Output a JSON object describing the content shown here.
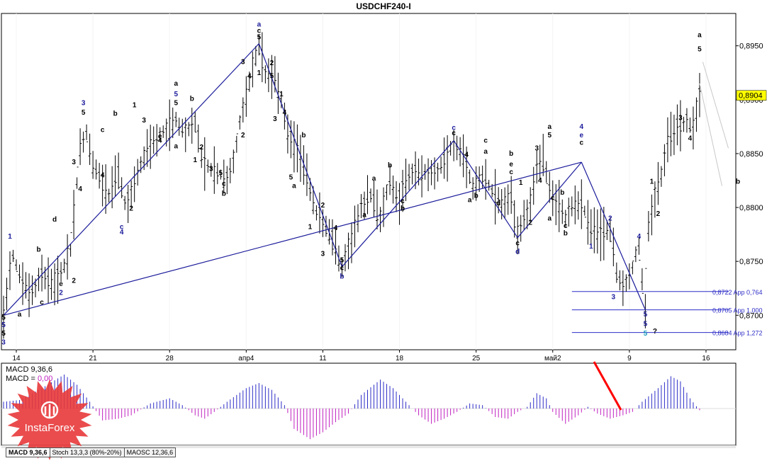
{
  "title": "USDCHF240-I",
  "brand": "InstaForex",
  "colors": {
    "price_line": "#000000",
    "wave_line": "#1c1c9c",
    "level_line": "#2d2dc8",
    "macd_pos": "#2d2dc8",
    "macd_neg": "#c020c0",
    "warning": "#ff0000",
    "price_label_bg": "#ffff00",
    "brand_red": "#e8393a"
  },
  "price_axis": {
    "ticks": [
      "0,8950",
      "0,8900",
      "0,8850",
      "0,8800",
      "0,8750",
      "0,8700"
    ],
    "current_price": "0,8904"
  },
  "time_axis": {
    "ticks": [
      "14",
      "21",
      "28",
      "апр4",
      "11",
      "18",
      "25",
      "май2",
      "9",
      "16"
    ]
  },
  "levels": [
    {
      "label": "0,8722 App 0,764",
      "value": 0.8722
    },
    {
      "label": "0,8705 App 1,000",
      "value": 0.8705
    },
    {
      "label": "0,8684 App 1,272",
      "value": 0.8684
    }
  ],
  "wave_labels": [
    {
      "text": "5",
      "color": "#000000",
      "t": 0,
      "p": 0.8696
    },
    {
      "text": "5",
      "color": "#1c1c9c",
      "t": 0,
      "p": 0.8689
    },
    {
      "text": "5",
      "color": "#000000",
      "t": 0,
      "p": 0.8681
    },
    {
      "text": "3",
      "color": "#1c1c9c",
      "t": 0,
      "p": 0.8673
    },
    {
      "text": "a",
      "color": "#000000",
      "t": 5,
      "p": 0.8699
    },
    {
      "text": "1",
      "color": "#1c1c9c",
      "t": 2,
      "p": 0.8771
    },
    {
      "text": "b",
      "color": "#000000",
      "t": 11,
      "p": 0.8759
    },
    {
      "text": "d",
      "color": "#000000",
      "t": 16,
      "p": 0.8787
    },
    {
      "text": "c",
      "color": "#000000",
      "t": 12,
      "p": 0.871
    },
    {
      "text": "e",
      "color": "#000000",
      "t": 18,
      "p": 0.8727
    },
    {
      "text": "2",
      "color": "#1c1c9c",
      "t": 18,
      "p": 0.8719
    },
    {
      "text": "2",
      "color": "#000000",
      "t": 22,
      "p": 0.873
    },
    {
      "text": "3",
      "color": "#1c1c9c",
      "t": 25,
      "p": 0.8895
    },
    {
      "text": "5",
      "color": "#000000",
      "t": 25,
      "p": 0.8886
    },
    {
      "text": "3",
      "color": "#000000",
      "t": 22,
      "p": 0.884
    },
    {
      "text": "4",
      "color": "#000000",
      "t": 24,
      "p": 0.8815
    },
    {
      "text": "b",
      "color": "#000000",
      "t": 35,
      "p": 0.8885
    },
    {
      "text": "4",
      "color": "#000000",
      "t": 31,
      "p": 0.8828
    },
    {
      "text": "c",
      "color": "#000000",
      "t": 31,
      "p": 0.887
    },
    {
      "text": "1",
      "color": "#000000",
      "t": 41,
      "p": 0.8893
    },
    {
      "text": "3",
      "color": "#000000",
      "t": 44,
      "p": 0.8879
    },
    {
      "text": "e",
      "color": "#000000",
      "t": 49,
      "p": 0.8864
    },
    {
      "text": "4",
      "color": "#000000",
      "t": 49,
      "p": 0.886
    },
    {
      "text": "a",
      "color": "#000000",
      "t": 54,
      "p": 0.8855
    },
    {
      "text": "5",
      "color": "#1c1c9c",
      "t": 54,
      "p": 0.8903
    },
    {
      "text": "a",
      "color": "#000000",
      "t": 54,
      "p": 0.8913
    },
    {
      "text": "5",
      "color": "#000000",
      "t": 54,
      "p": 0.8895
    },
    {
      "text": "b",
      "color": "#000000",
      "t": 59,
      "p": 0.8899
    },
    {
      "text": "2",
      "color": "#000000",
      "t": 62,
      "p": 0.8854
    },
    {
      "text": "1",
      "color": "#000000",
      "t": 60,
      "p": 0.8842
    },
    {
      "text": "3",
      "color": "#000000",
      "t": 65,
      "p": 0.8834
    },
    {
      "text": "5",
      "color": "#000000",
      "t": 68,
      "p": 0.883
    },
    {
      "text": "c",
      "color": "#000000",
      "t": 69,
      "p": 0.882
    },
    {
      "text": "b",
      "color": "#000000",
      "t": 69,
      "p": 0.8811
    },
    {
      "text": "4",
      "color": "#1c1c9c",
      "t": 37,
      "p": 0.8775
    },
    {
      "text": "c",
      "color": "#1c1c9c",
      "t": 37,
      "p": 0.878
    },
    {
      "text": "2",
      "color": "#000000",
      "t": 40,
      "p": 0.8797
    },
    {
      "text": "a",
      "color": "#1c1c9c",
      "t": 80,
      "p": 0.8968
    },
    {
      "text": "c",
      "color": "#000000",
      "t": 80,
      "p": 0.8962
    },
    {
      "text": "5",
      "color": "#000000",
      "t": 80,
      "p": 0.8956
    },
    {
      "text": "3",
      "color": "#000000",
      "t": 75,
      "p": 0.8933
    },
    {
      "text": "1",
      "color": "#000000",
      "t": 80,
      "p": 0.8923
    },
    {
      "text": "4",
      "color": "#000000",
      "t": 77,
      "p": 0.892
    },
    {
      "text": "2",
      "color": "#000000",
      "t": 84,
      "p": 0.8932
    },
    {
      "text": "5",
      "color": "#000000",
      "t": 84,
      "p": 0.892
    },
    {
      "text": "1",
      "color": "#000000",
      "t": 87,
      "p": 0.8903
    },
    {
      "text": "4",
      "color": "#000000",
      "t": 88,
      "p": 0.8886
    },
    {
      "text": "2",
      "color": "#000000",
      "t": 75,
      "p": 0.8865
    },
    {
      "text": "3",
      "color": "#000000",
      "t": 85,
      "p": 0.888
    },
    {
      "text": "b",
      "color": "#000000",
      "t": 94,
      "p": 0.8865
    },
    {
      "text": "5",
      "color": "#000000",
      "t": 90,
      "p": 0.8826
    },
    {
      "text": "a",
      "color": "#000000",
      "t": 91,
      "p": 0.8818
    },
    {
      "text": "2",
      "color": "#000000",
      "t": 100,
      "p": 0.88
    },
    {
      "text": "1",
      "color": "#000000",
      "t": 96,
      "p": 0.878
    },
    {
      "text": "4",
      "color": "#000000",
      "t": 104,
      "p": 0.8779
    },
    {
      "text": "3",
      "color": "#000000",
      "t": 100,
      "p": 0.8755
    },
    {
      "text": "5",
      "color": "#000000",
      "t": 106,
      "p": 0.8749
    },
    {
      "text": "c",
      "color": "#000000",
      "t": 106,
      "p": 0.8742
    },
    {
      "text": "b",
      "color": "#1c1c9c",
      "t": 106,
      "p": 0.8734
    },
    {
      "text": "a",
      "color": "#000000",
      "t": 116,
      "p": 0.8825
    },
    {
      "text": "a",
      "color": "#000000",
      "t": 113,
      "p": 0.8791
    },
    {
      "text": "b",
      "color": "#000000",
      "t": 121,
      "p": 0.8837
    },
    {
      "text": "c",
      "color": "#000000",
      "t": 125,
      "p": 0.8804
    },
    {
      "text": "b",
      "color": "#000000",
      "t": 125,
      "p": 0.8797
    },
    {
      "text": "c",
      "color": "#1c1c9c",
      "t": 141,
      "p": 0.8872
    },
    {
      "text": "c",
      "color": "#000000",
      "t": 141,
      "p": 0.8867
    },
    {
      "text": "c",
      "color": "#000000",
      "t": 151,
      "p": 0.886
    },
    {
      "text": "a",
      "color": "#000000",
      "t": 151,
      "p": 0.885
    },
    {
      "text": "4",
      "color": "#000000",
      "t": 145,
      "p": 0.8847
    },
    {
      "text": "b",
      "color": "#000000",
      "t": 148,
      "p": 0.8809
    },
    {
      "text": "a",
      "color": "#000000",
      "t": 146,
      "p": 0.8805
    },
    {
      "text": "d",
      "color": "#000000",
      "t": 155,
      "p": 0.8802
    },
    {
      "text": "b",
      "color": "#000000",
      "t": 159,
      "p": 0.8848
    },
    {
      "text": "e",
      "color": "#000000",
      "t": 159,
      "p": 0.8838
    },
    {
      "text": "c",
      "color": "#000000",
      "t": 159,
      "p": 0.8831
    },
    {
      "text": "1",
      "color": "#000000",
      "t": 162,
      "p": 0.8821
    },
    {
      "text": "2",
      "color": "#000000",
      "t": 165,
      "p": 0.8784
    },
    {
      "text": "c",
      "color": "#000000",
      "t": 161,
      "p": 0.8765
    },
    {
      "text": "d",
      "color": "#1c1c9c",
      "t": 161,
      "p": 0.8757
    },
    {
      "text": "3",
      "color": "#000000",
      "t": 167,
      "p": 0.8853
    },
    {
      "text": "4",
      "color": "#000000",
      "t": 168,
      "p": 0.8823
    },
    {
      "text": "a",
      "color": "#000000",
      "t": 171,
      "p": 0.8873
    },
    {
      "text": "5",
      "color": "#000000",
      "t": 171,
      "p": 0.8865
    },
    {
      "text": "c",
      "color": "#000000",
      "t": 172,
      "p": 0.8807
    },
    {
      "text": "a",
      "color": "#000000",
      "t": 171,
      "p": 0.8788
    },
    {
      "text": "b",
      "color": "#000000",
      "t": 175,
      "p": 0.8812
    },
    {
      "text": "c",
      "color": "#000000",
      "t": 176,
      "p": 0.8781
    },
    {
      "text": "b",
      "color": "#000000",
      "t": 176,
      "p": 0.8774
    },
    {
      "text": "4",
      "color": "#1c1c9c",
      "t": 181,
      "p": 0.8873
    },
    {
      "text": "e",
      "color": "#1c1c9c",
      "t": 181,
      "p": 0.8865
    },
    {
      "text": "c",
      "color": "#000000",
      "t": 181,
      "p": 0.8858
    },
    {
      "text": "1",
      "color": "#1c1c9c",
      "t": 184,
      "p": 0.8762
    },
    {
      "text": "2",
      "color": "#1c1c9c",
      "t": 190,
      "p": 0.8788
    },
    {
      "text": "3",
      "color": "#1c1c9c",
      "t": 191,
      "p": 0.8715
    },
    {
      "text": "4",
      "color": "#1c1c9c",
      "t": 199,
      "p": 0.8771
    },
    {
      "text": "5",
      "color": "#1c1c9c",
      "t": 201,
      "p": 0.8699
    },
    {
      "text": "5",
      "color": "#1c1c9c",
      "t": 201,
      "p": 0.869
    },
    {
      "text": "5",
      "color": "#1a9abc",
      "t": 201,
      "p": 0.8681
    },
    {
      "text": "?",
      "color": "#000000",
      "t": 204,
      "p": 0.8683
    },
    {
      "text": "1",
      "color": "#000000",
      "t": 203,
      "p": 0.8822
    },
    {
      "text": "2",
      "color": "#000000",
      "t": 205,
      "p": 0.8792
    },
    {
      "text": "3",
      "color": "#000000",
      "t": 212,
      "p": 0.8881
    },
    {
      "text": "4",
      "color": "#000000",
      "t": 215,
      "p": 0.8862
    },
    {
      "text": "a",
      "color": "#000000",
      "t": 218,
      "p": 0.8958
    },
    {
      "text": "5",
      "color": "#000000",
      "t": 218,
      "p": 0.8945
    },
    {
      "text": "b",
      "color": "#000000",
      "t": 230,
      "p": 0.8822
    }
  ],
  "macd_panel": {
    "label_macd": "MACD 9,36,6",
    "label_macd2": "MACD = ",
    "label_macd2_value": "0,00"
  },
  "tabs": [
    "MACD 9,36,6",
    "Stoch 13,3,3 (80%-20%)",
    "MAOSC 12,36,6"
  ],
  "chart_data": {
    "type": "candlestick",
    "title": "USDCHF240-I",
    "ylim": [
      0.8668,
      0.898
    ],
    "x_ticks": [
      "14",
      "21",
      "28",
      "апр4",
      "11",
      "18",
      "25",
      "май2",
      "9",
      "16"
    ],
    "last_price": 0.8904,
    "anchors": [
      [
        0,
        0.87
      ],
      [
        3,
        0.8755
      ],
      [
        6,
        0.873
      ],
      [
        9,
        0.8722
      ],
      [
        12,
        0.8738
      ],
      [
        15,
        0.873
      ],
      [
        18,
        0.8738
      ],
      [
        21,
        0.876
      ],
      [
        24,
        0.8855
      ],
      [
        26,
        0.887
      ],
      [
        28,
        0.884
      ],
      [
        30,
        0.883
      ],
      [
        33,
        0.881
      ],
      [
        36,
        0.883
      ],
      [
        38,
        0.8805
      ],
      [
        40,
        0.881
      ],
      [
        43,
        0.884
      ],
      [
        46,
        0.886
      ],
      [
        50,
        0.887
      ],
      [
        54,
        0.888
      ],
      [
        57,
        0.887
      ],
      [
        60,
        0.888
      ],
      [
        62,
        0.8845
      ],
      [
        65,
        0.8835
      ],
      [
        68,
        0.883
      ],
      [
        70,
        0.8825
      ],
      [
        72,
        0.884
      ],
      [
        74,
        0.888
      ],
      [
        77,
        0.8915
      ],
      [
        80,
        0.895
      ],
      [
        82,
        0.8925
      ],
      [
        85,
        0.892
      ],
      [
        87,
        0.89
      ],
      [
        89,
        0.887
      ],
      [
        92,
        0.8855
      ],
      [
        95,
        0.883
      ],
      [
        98,
        0.8795
      ],
      [
        101,
        0.878
      ],
      [
        103,
        0.877
      ],
      [
        106,
        0.8745
      ],
      [
        109,
        0.877
      ],
      [
        112,
        0.88
      ],
      [
        115,
        0.881
      ],
      [
        118,
        0.879
      ],
      [
        121,
        0.8825
      ],
      [
        124,
        0.8805
      ],
      [
        127,
        0.883
      ],
      [
        130,
        0.8835
      ],
      [
        134,
        0.883
      ],
      [
        138,
        0.884
      ],
      [
        141,
        0.886
      ],
      [
        144,
        0.885
      ],
      [
        147,
        0.882
      ],
      [
        150,
        0.883
      ],
      [
        153,
        0.8815
      ],
      [
        156,
        0.8805
      ],
      [
        159,
        0.881
      ],
      [
        161,
        0.8775
      ],
      [
        163,
        0.879
      ],
      [
        165,
        0.88
      ],
      [
        167,
        0.884
      ],
      [
        169,
        0.8845
      ],
      [
        171,
        0.882
      ],
      [
        173,
        0.8805
      ],
      [
        176,
        0.879
      ],
      [
        178,
        0.88
      ],
      [
        181,
        0.8805
      ],
      [
        184,
        0.878
      ],
      [
        187,
        0.8775
      ],
      [
        190,
        0.878
      ],
      [
        192,
        0.874
      ],
      [
        194,
        0.8725
      ],
      [
        196,
        0.8735
      ],
      [
        198,
        0.8755
      ],
      [
        199,
        0.8765
      ],
      [
        201,
        0.8705
      ],
      [
        202,
        0.878
      ],
      [
        204,
        0.881
      ],
      [
        206,
        0.883
      ],
      [
        208,
        0.886
      ],
      [
        210,
        0.887
      ],
      [
        212,
        0.8875
      ],
      [
        214,
        0.888
      ],
      [
        216,
        0.887
      ],
      [
        218,
        0.8904
      ]
    ],
    "wave_lines": [
      [
        [
          0,
          0.87
        ],
        [
          80,
          0.8952
        ]
      ],
      [
        [
          0,
          0.87
        ],
        [
          181,
          0.8842
        ]
      ],
      [
        [
          80,
          0.8952
        ],
        [
          106,
          0.8745
        ]
      ],
      [
        [
          106,
          0.8745
        ],
        [
          141,
          0.8862
        ]
      ],
      [
        [
          141,
          0.8862
        ],
        [
          161,
          0.8772
        ]
      ],
      [
        [
          161,
          0.8772
        ],
        [
          181,
          0.8842
        ]
      ],
      [
        [
          181,
          0.8842
        ],
        [
          201,
          0.8705
        ]
      ]
    ],
    "forecast_lines": [
      [
        [
          219,
          0.8935
        ],
        [
          227,
          0.8855
        ]
      ],
      [
        [
          218,
          0.8915
        ],
        [
          225,
          0.882
        ]
      ]
    ],
    "macd_waves": [
      [
        0,
        0.2
      ],
      [
        5,
        0.25
      ],
      [
        12,
        0.6
      ],
      [
        19,
        1.0
      ],
      [
        23,
        0.7
      ],
      [
        27,
        0.2
      ],
      [
        31,
        -0.35
      ],
      [
        36,
        -0.3
      ],
      [
        40,
        -0.2
      ],
      [
        46,
        0.15
      ],
      [
        52,
        0.3
      ],
      [
        56,
        0.1
      ],
      [
        60,
        -0.2
      ],
      [
        63,
        -0.3
      ],
      [
        66,
        -0.1
      ],
      [
        70,
        0.2
      ],
      [
        76,
        0.6
      ],
      [
        80,
        0.75
      ],
      [
        84,
        0.55
      ],
      [
        88,
        0.1
      ],
      [
        91,
        -0.6
      ],
      [
        96,
        -0.9
      ],
      [
        100,
        -0.7
      ],
      [
        104,
        -0.4
      ],
      [
        108,
        -0.15
      ],
      [
        112,
        0.4
      ],
      [
        118,
        0.85
      ],
      [
        122,
        0.6
      ],
      [
        126,
        0.2
      ],
      [
        130,
        -0.2
      ],
      [
        134,
        -0.45
      ],
      [
        138,
        -0.3
      ],
      [
        142,
        -0.1
      ],
      [
        146,
        0.15
      ],
      [
        150,
        0.1
      ],
      [
        154,
        -0.25
      ],
      [
        158,
        -0.3
      ],
      [
        161,
        -0.1
      ],
      [
        164,
        0.05
      ],
      [
        167,
        0.45
      ],
      [
        170,
        0.3
      ],
      [
        172,
        -0.1
      ],
      [
        176,
        -0.45
      ],
      [
        180,
        -0.2
      ],
      [
        183,
        0.05
      ],
      [
        186,
        -0.15
      ],
      [
        190,
        -0.3
      ],
      [
        194,
        -0.2
      ],
      [
        197,
        -0.1
      ],
      [
        200,
        0.2
      ],
      [
        205,
        0.6
      ],
      [
        209,
        0.95
      ],
      [
        212,
        0.8
      ],
      [
        215,
        0.3
      ],
      [
        218,
        -0.05
      ]
    ]
  }
}
